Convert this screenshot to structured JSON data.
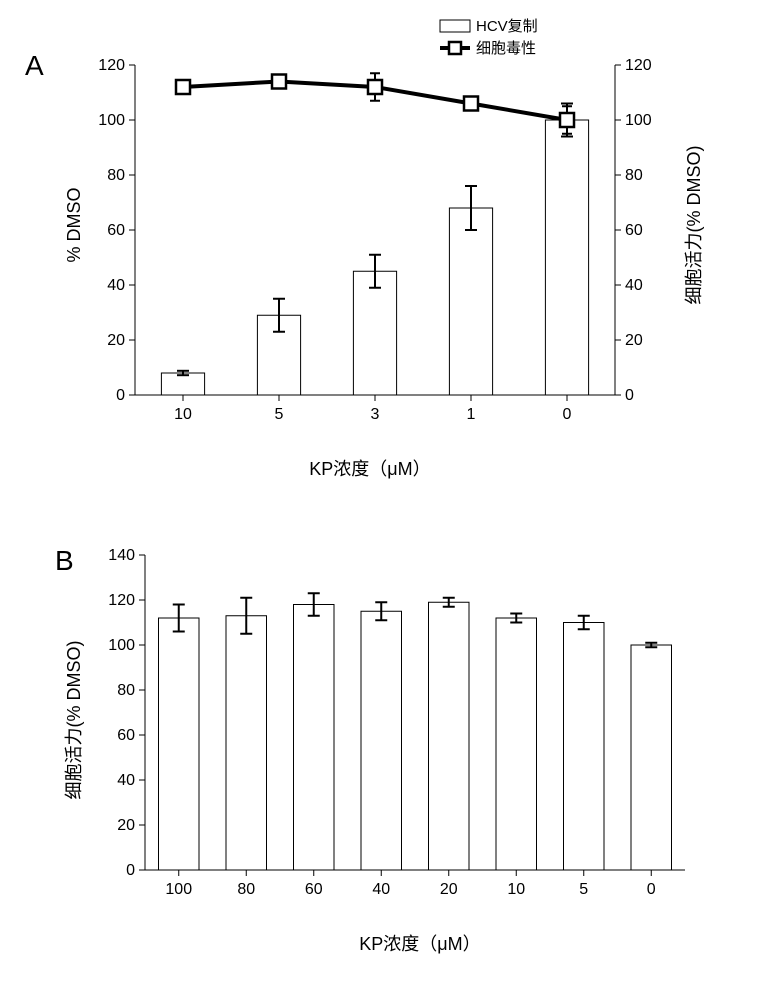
{
  "panelA": {
    "label": "A",
    "chart_type": "bar_line_combo",
    "categories": [
      "10",
      "5",
      "3",
      "1",
      "0"
    ],
    "bars": {
      "values": [
        8,
        29,
        45,
        68,
        100
      ],
      "errors": [
        0.8,
        6,
        6,
        8,
        6
      ],
      "fill_color": "#ffffff",
      "stroke_color": "#000000",
      "stroke_width": 1,
      "bar_width_frac": 0.45
    },
    "line": {
      "values": [
        112,
        114,
        112,
        106,
        100
      ],
      "errors": [
        2,
        2,
        5,
        2,
        5
      ],
      "stroke_color": "#000000",
      "stroke_width": 4,
      "marker_shape": "square",
      "marker_size": 14,
      "marker_fill": "#ffffff",
      "marker_stroke": "#000000"
    },
    "y_left": {
      "label": "% DMSO",
      "min": 0,
      "max": 120,
      "tick_step": 20,
      "fontsize": 16
    },
    "y_right": {
      "label": "细胞活力(% DMSO)",
      "min": 0,
      "max": 120,
      "tick_step": 20,
      "fontsize": 16
    },
    "x": {
      "label": "KP浓度（μM）",
      "fontsize": 18
    },
    "legend": {
      "items": [
        {
          "type": "bar",
          "label": "HCV复制"
        },
        {
          "type": "line",
          "label": "细胞毒性"
        }
      ],
      "fontsize": 15
    },
    "plot_bg": "#ffffff"
  },
  "panelB": {
    "label": "B",
    "chart_type": "bar",
    "categories": [
      "100",
      "80",
      "60",
      "40",
      "20",
      "10",
      "5",
      "0"
    ],
    "bars": {
      "values": [
        112,
        113,
        118,
        115,
        119,
        112,
        110,
        100
      ],
      "errors": [
        6,
        8,
        5,
        4,
        2,
        2,
        3,
        1
      ],
      "fill_color": "#ffffff",
      "stroke_color": "#000000",
      "stroke_width": 1,
      "bar_width_frac": 0.6
    },
    "y": {
      "label": "细胞活力(% DMSO)",
      "min": 0,
      "max": 140,
      "tick_step": 20,
      "fontsize": 16
    },
    "x": {
      "label": "KP浓度（μM）",
      "fontsize": 18
    },
    "plot_bg": "#ffffff"
  },
  "colors": {
    "axis": "#000000",
    "text": "#000000",
    "bg": "#ffffff"
  }
}
